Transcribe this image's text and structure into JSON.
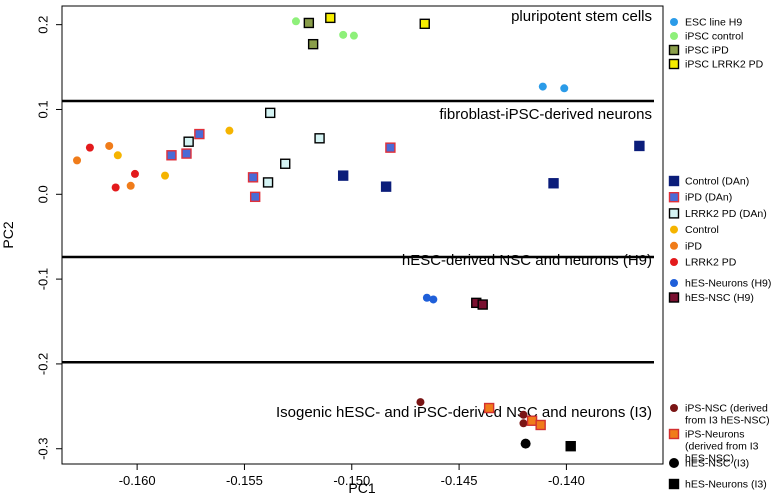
{
  "chart_data": {
    "type": "scatter",
    "xlabel": "PC1",
    "ylabel": "PC2",
    "xlim": [
      -0.1635,
      -0.1355
    ],
    "ylim": [
      -0.318,
      0.222
    ],
    "x_ticks": [
      -0.16,
      -0.155,
      -0.15,
      -0.145,
      -0.14
    ],
    "x_tick_labels": [
      "-0.160",
      "-0.155",
      "-0.150",
      "-0.145",
      "-0.140"
    ],
    "y_ticks": [
      0.2,
      0.1,
      0.0,
      -0.1,
      -0.2,
      -0.3
    ],
    "y_tick_labels": [
      "0.2",
      "0.1",
      "0.0",
      "-0.1",
      "-0.2",
      "-0.3"
    ],
    "grid": false,
    "legend_position": "right",
    "sections": [
      {
        "label": "pluripotent stem cells",
        "boundary_y": 0.11
      },
      {
        "label": "fibroblast-iPSC-derived neurons",
        "boundary_y": -0.074
      },
      {
        "label": "hESC-derived NSC and neurons (H9)",
        "boundary_y": -0.198
      },
      {
        "label": "Isogenic hESC- and iPSC-derived NSC and neurons (I3)",
        "boundary_y": null
      }
    ],
    "series": [
      {
        "name": "ESC line H9",
        "shape": "circle",
        "fill": "#2b9be8",
        "stroke": "none",
        "points": [
          [
            -0.1411,
            0.127
          ],
          [
            -0.1401,
            0.125
          ]
        ]
      },
      {
        "name": "iPSC control",
        "shape": "circle",
        "fill": "#8ef07a",
        "stroke": "none",
        "points": [
          [
            -0.1526,
            0.204
          ],
          [
            -0.1504,
            0.188
          ],
          [
            -0.1499,
            0.187
          ]
        ]
      },
      {
        "name": "iPSC iPD",
        "shape": "square",
        "fill": "#8a9e4a",
        "stroke": "#000000",
        "points": [
          [
            -0.152,
            0.202
          ],
          [
            -0.1518,
            0.177
          ]
        ]
      },
      {
        "name": "iPSC LRRK2 PD",
        "shape": "square",
        "fill": "#f7ee00",
        "stroke": "#000000",
        "points": [
          [
            -0.151,
            0.208
          ],
          [
            -0.1466,
            0.201
          ]
        ]
      },
      {
        "name": "Control (DAn)",
        "shape": "square",
        "fill": "#0b1d7a",
        "stroke": "#0b1d7a",
        "points": [
          [
            -0.1504,
            0.022
          ],
          [
            -0.1484,
            0.009
          ],
          [
            -0.1406,
            0.013
          ],
          [
            -0.1366,
            0.057
          ]
        ]
      },
      {
        "name": "iPD (DAn)",
        "shape": "square",
        "fill": "#4a6bd6",
        "stroke": "#e0303a",
        "points": [
          [
            -0.1584,
            0.046
          ],
          [
            -0.1577,
            0.048
          ],
          [
            -0.1571,
            0.071
          ],
          [
            -0.1546,
            0.02
          ],
          [
            -0.1545,
            -0.003
          ],
          [
            -0.1482,
            0.055
          ]
        ]
      },
      {
        "name": "LRRK2 PD (DAn)",
        "shape": "square",
        "fill": "#d4f3f3",
        "stroke": "#000000",
        "points": [
          [
            -0.1576,
            0.062
          ],
          [
            -0.1539,
            0.014
          ],
          [
            -0.1538,
            0.096
          ],
          [
            -0.1531,
            0.036
          ],
          [
            -0.1515,
            0.066
          ]
        ]
      },
      {
        "name": "Control",
        "shape": "circle",
        "fill": "#f5b400",
        "stroke": "none",
        "points": [
          [
            -0.1609,
            0.046
          ],
          [
            -0.1587,
            0.022
          ],
          [
            -0.1557,
            0.075
          ]
        ]
      },
      {
        "name": "iPD",
        "shape": "circle",
        "fill": "#f07c1a",
        "stroke": "none",
        "points": [
          [
            -0.1628,
            0.04
          ],
          [
            -0.1613,
            0.057
          ],
          [
            -0.1603,
            0.01
          ]
        ]
      },
      {
        "name": "LRRK2 PD",
        "shape": "circle",
        "fill": "#e31a1c",
        "stroke": "none",
        "points": [
          [
            -0.1622,
            0.055
          ],
          [
            -0.161,
            0.008
          ],
          [
            -0.1601,
            0.024
          ]
        ]
      },
      {
        "name": "hES-Neurons (H9)",
        "shape": "circle",
        "fill": "#1f5fd9",
        "stroke": "none",
        "points": [
          [
            -0.1465,
            -0.122
          ],
          [
            -0.1462,
            -0.124
          ]
        ]
      },
      {
        "name": "hES-NSC (H9)",
        "shape": "square",
        "fill": "#7a1030",
        "stroke": "#000000",
        "points": [
          [
            -0.1442,
            -0.128
          ],
          [
            -0.1439,
            -0.13
          ]
        ]
      },
      {
        "name": "iPS-NSC (derived from I3 hES-NSC)",
        "shape": "circle",
        "fill": "#7a1515",
        "stroke": "none",
        "points": [
          [
            -0.1468,
            -0.245
          ],
          [
            -0.142,
            -0.26
          ],
          [
            -0.142,
            -0.27
          ]
        ]
      },
      {
        "name": "iPS-Neurons (derived from I3 hES-NSC)",
        "shape": "square",
        "fill": "#f07c1a",
        "stroke": "#d23030",
        "points": [
          [
            -0.1436,
            -0.252
          ],
          [
            -0.1416,
            -0.267
          ],
          [
            -0.1412,
            -0.272
          ]
        ]
      },
      {
        "name": "hES-NSC (I3)",
        "shape": "circle",
        "fill": "#000000",
        "stroke": "none",
        "size": "large",
        "points": [
          [
            -0.1419,
            -0.294
          ]
        ]
      },
      {
        "name": "hES-Neurons (I3)",
        "shape": "square",
        "fill": "#000000",
        "stroke": "#000000",
        "points": [
          [
            -0.1398,
            -0.297
          ]
        ]
      }
    ]
  },
  "legend_groups": [
    {
      "series": [
        0,
        1,
        2,
        3
      ]
    },
    {
      "series": [
        4,
        5,
        6,
        7,
        8,
        9
      ]
    },
    {
      "series": [
        10,
        11
      ]
    },
    {
      "series": [
        12,
        13,
        14,
        15
      ]
    }
  ]
}
